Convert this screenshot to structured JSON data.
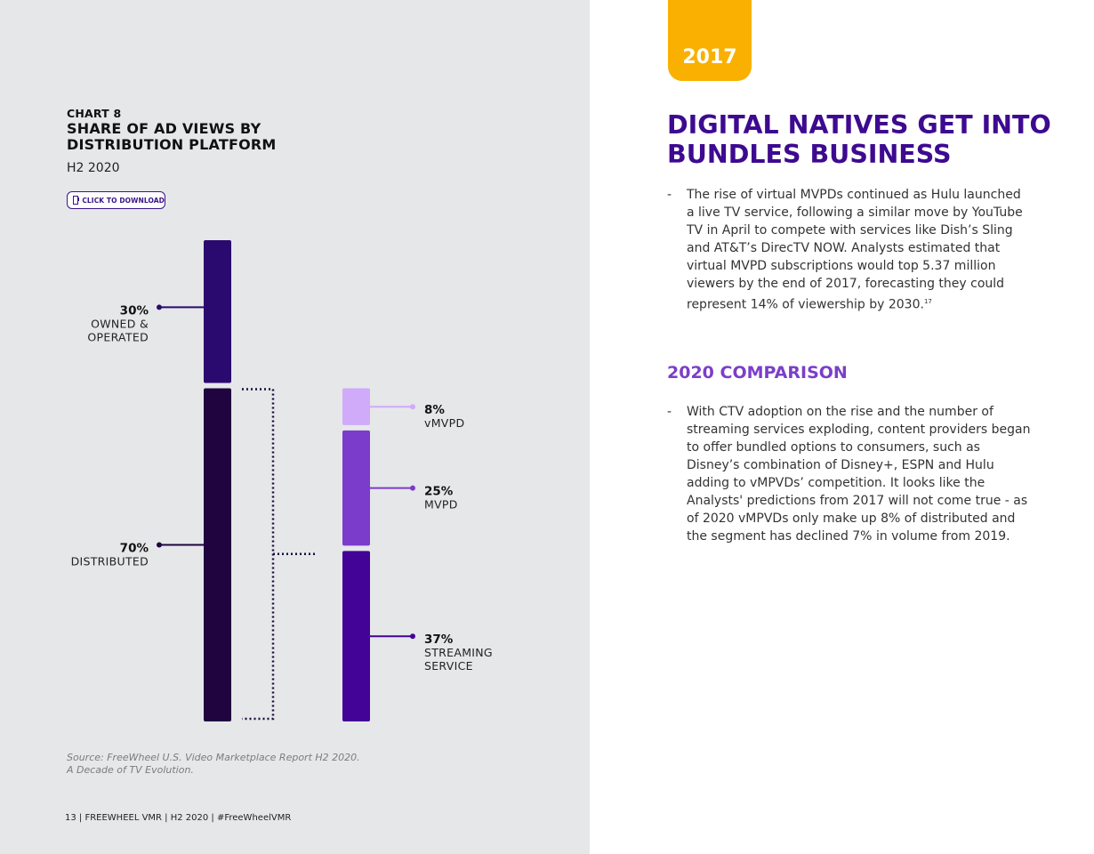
{
  "chart_header": {
    "kicker": "CHART 8",
    "title": "SHARE OF AD VIEWS BY DISTRIBUTION PLATFORM",
    "period": "H2 2020",
    "download_label": "CLICK TO DOWNLOAD"
  },
  "chart_data": {
    "type": "bar",
    "title": "SHARE OF AD VIEWS BY DISTRIBUTION PLATFORM",
    "subtitle": "H2 2020",
    "unit": "%",
    "primary_bar": [
      {
        "name": "OWNED & OPERATED",
        "value": 30,
        "label_pct": "30%",
        "label_lines": [
          "OWNED &",
          "OPERATED"
        ],
        "color": "#2a0a6e"
      },
      {
        "name": "DISTRIBUTED",
        "value": 70,
        "label_pct": "70%",
        "label_lines": [
          "DISTRIBUTED"
        ],
        "color": "#1f043f"
      }
    ],
    "breakdown_of": "DISTRIBUTED",
    "breakdown_bar": [
      {
        "name": "vMVPD",
        "value": 8,
        "label_pct": "8%",
        "label_lines": [
          "vMVPD"
        ],
        "color": "#cfabfa"
      },
      {
        "name": "MVPD",
        "value": 25,
        "label_pct": "25%",
        "label_lines": [
          "MVPD"
        ],
        "color": "#7b3ccb"
      },
      {
        "name": "STREAMING SERVICE",
        "value": 37,
        "label_pct": "37%",
        "label_lines": [
          "STREAMING",
          "SERVICE"
        ],
        "color": "#420396"
      }
    ]
  },
  "source": {
    "line1": "Source: FreeWheel U.S. Video Marketplace Report H2 2020.",
    "line2": "A Decade of TV Evolution."
  },
  "footer": {
    "text": "13  |  FREEWHEEL VMR  |  H2 2020  |  #FreeWheelVMR"
  },
  "year_tab": "2017",
  "headline": "DIGITAL NATIVES GET INTO BUNDLES BUSINESS",
  "paragraph1": {
    "dash": "-",
    "text": "The rise of virtual MVPDs continued as Hulu launched a live TV service, following a similar move by YouTube TV in April to compete with services like Dish’s Sling and AT&T’s DirecTV NOW. Analysts estimated that virtual MVPD subscriptions would top 5.37 million viewers by the end of 2017, forecasting they could represent 14% of viewership by 2030.",
    "footnote": "17"
  },
  "comparison_heading": "2020 COMPARISON",
  "paragraph2": {
    "dash": "-",
    "text": "With CTV adoption on the rise and the number of streaming services exploding, content providers began to offer bundled options to consumers, such as Disney’s combination of Disney+, ESPN and Hulu adding to vMPVDs’ competition. It looks like the Analysts' predictions from 2017 will not come true - as of 2020 vMPVDs only make up 8% of distributed and the segment has declined 7% in volume from 2019."
  },
  "colors": {
    "left_bg": "#e6e7e9",
    "accent_purple": "#3d0a90",
    "subhead_purple": "#7b3fc8",
    "year_yellow": "#f9b000"
  }
}
